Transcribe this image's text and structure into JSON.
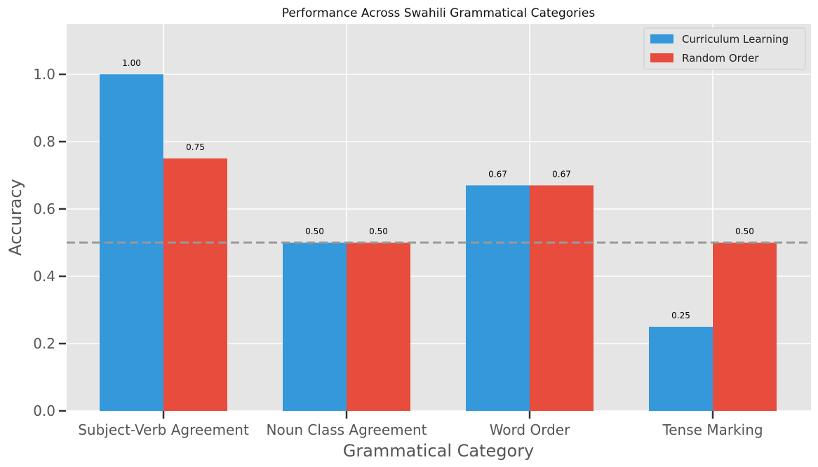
{
  "chart_data": {
    "type": "bar",
    "title": "Performance Across Swahili Grammatical Categories",
    "xlabel": "Grammatical Category",
    "ylabel": "Accuracy",
    "categories": [
      "Subject-Verb Agreement",
      "Noun Class Agreement",
      "Word Order",
      "Tense Marking"
    ],
    "series": [
      {
        "name": "Curriculum Learning",
        "color": "#3498db",
        "values": [
          1.0,
          0.5,
          0.67,
          0.25
        ],
        "labels": [
          "1.00",
          "0.50",
          "0.67",
          "0.25"
        ]
      },
      {
        "name": "Random Order",
        "color": "#e74c3c",
        "values": [
          0.75,
          0.5,
          0.67,
          0.5
        ],
        "labels": [
          "0.75",
          "0.50",
          "0.67",
          "0.50"
        ]
      }
    ],
    "ylim": [
      0,
      1.15
    ],
    "yticks": [
      "0.0",
      "0.2",
      "0.4",
      "0.6",
      "0.8",
      "1.0"
    ],
    "reference_line": {
      "y": 0.5,
      "style": "dashed",
      "color": "#999999"
    },
    "grid": true,
    "legend_position": "top-right",
    "background": "#e5e5e5"
  }
}
